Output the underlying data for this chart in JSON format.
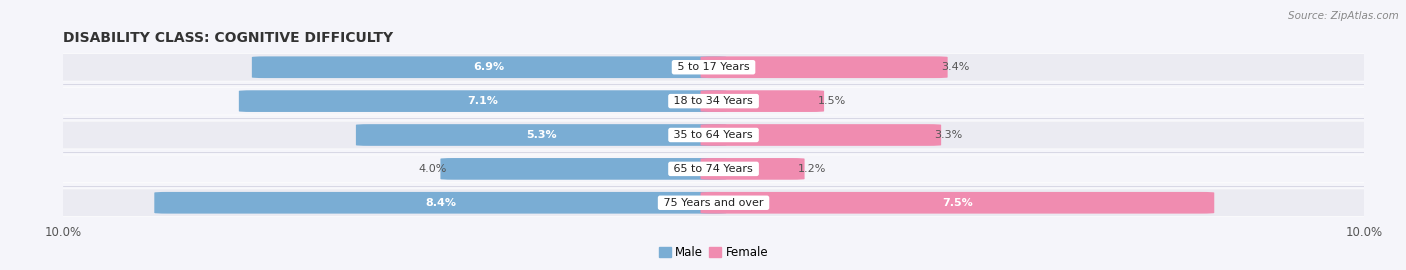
{
  "title": "DISABILITY CLASS: COGNITIVE DIFFICULTY",
  "source": "Source: ZipAtlas.com",
  "categories": [
    "5 to 17 Years",
    "18 to 34 Years",
    "35 to 64 Years",
    "65 to 74 Years",
    "75 Years and over"
  ],
  "male_values": [
    6.9,
    7.1,
    5.3,
    4.0,
    8.4
  ],
  "female_values": [
    3.4,
    1.5,
    3.3,
    1.2,
    7.5
  ],
  "male_color": "#7aadd4",
  "female_color": "#f08cb0",
  "row_bg_color": "#ebebf2",
  "row_alt_bg_color": "#f5f5fa",
  "bg_color": "#f5f5fa",
  "max_val": 10.0,
  "title_fontsize": 10,
  "label_fontsize": 8,
  "category_fontsize": 8,
  "source_fontsize": 7.5,
  "bar_height": 0.6,
  "inside_label_threshold": 4.5
}
